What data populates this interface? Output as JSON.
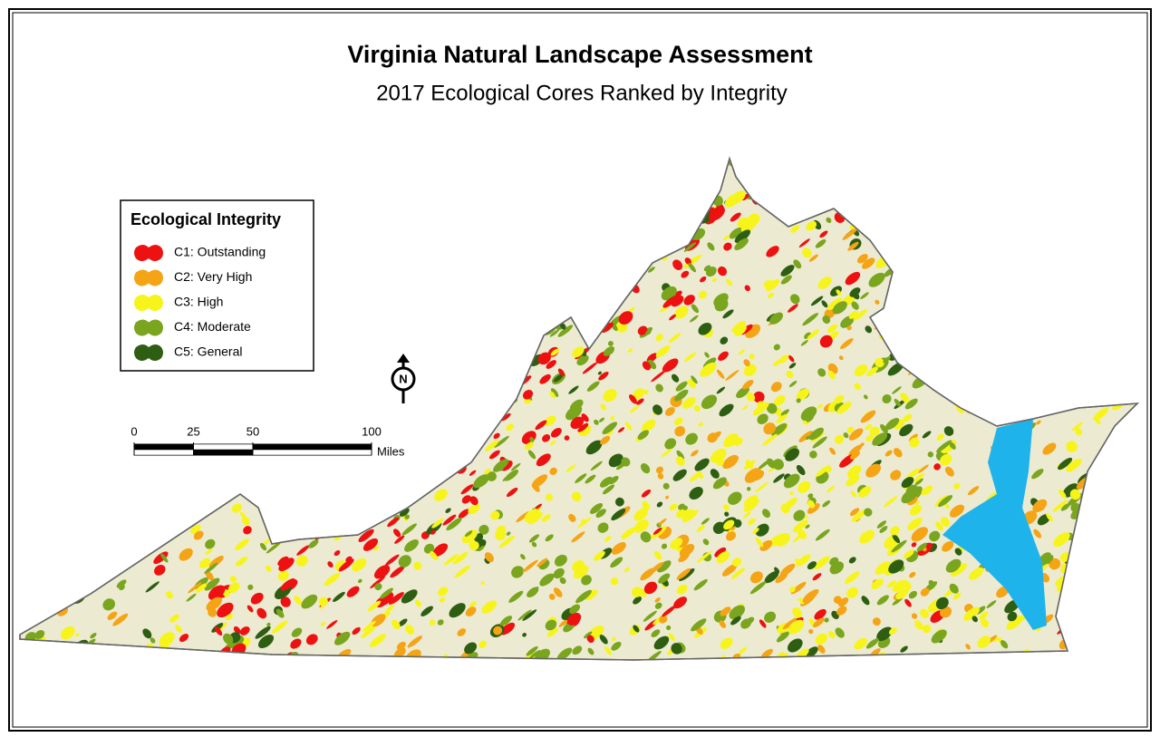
{
  "header": {
    "title": "Virginia Natural Landscape Assessment",
    "subtitle": "2017 Ecological Cores Ranked by Integrity"
  },
  "legend": {
    "title": "Ecological Integrity",
    "items": [
      {
        "label": "C1: Outstanding",
        "color": "#ee1111"
      },
      {
        "label": "C2: Very High",
        "color": "#f5a416"
      },
      {
        "label": "C3: High",
        "color": "#f7f41c"
      },
      {
        "label": "C4: Moderate",
        "color": "#7aa51e"
      },
      {
        "label": "C5: General",
        "color": "#2e5e12"
      }
    ]
  },
  "north_arrow": {
    "label": "N"
  },
  "scale_bar": {
    "ticks": [
      0,
      25,
      50,
      100
    ],
    "unit": "Miles"
  }
}
